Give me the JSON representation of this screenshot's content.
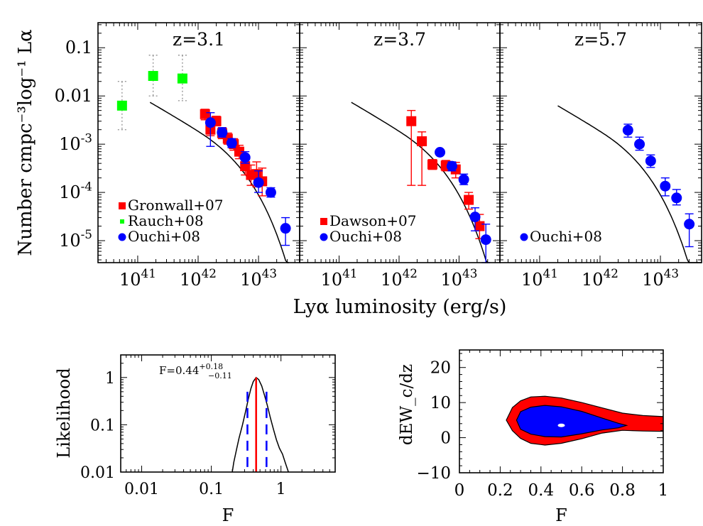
{
  "figure": {
    "ylabel_top": "Number cmpc⁻³log⁻¹ Lα",
    "xlabel_top": "Lyα luminosity (erg/s)"
  },
  "chart_data": [
    {
      "type": "scatter",
      "title": "z=3.1",
      "xscale": "log",
      "yscale": "log",
      "xlim": [
        2.2e+40,
        4.8e+43
      ],
      "ylim": [
        3.5e-06,
        0.33
      ],
      "xticklabels": [
        "10^41",
        "10^42",
        "10^43"
      ],
      "yticklabels": [
        "0.1",
        "0.01",
        "10^-3",
        "10^-4",
        "10^-5"
      ],
      "legend_position": "lower-left",
      "legend": [
        {
          "label": "Gronwall+07",
          "color": "#ff0000",
          "marker": "square"
        },
        {
          "label": "Rauch+08",
          "color": "#00ff00",
          "marker": "square"
        },
        {
          "label": "Ouchi+08",
          "color": "#0000ff",
          "marker": "circle"
        }
      ],
      "series": [
        {
          "name": "Gronwall+07",
          "color": "#ff0000",
          "marker": "square",
          "points": [
            [
              1.3e+42,
              0.0042,
              0.0032,
              0.0053
            ],
            [
              1.6e+42,
              0.002,
              0.0015,
              0.0026
            ],
            [
              2e+42,
              0.003,
              0.0024,
              0.0038
            ],
            [
              2.5e+42,
              0.0017,
              0.0013,
              0.0022
            ],
            [
              3.1e+42,
              0.0013,
              0.001,
              0.0017
            ],
            [
              3.9e+42,
              0.001,
              0.00075,
              0.0013
            ],
            [
              4.8e+42,
              0.0007,
              0.0005,
              0.00095
            ],
            [
              6e+42,
              0.00035,
              0.00023,
              0.00052
            ],
            [
              7.5e+42,
              0.00023,
              0.00014,
              0.00037
            ],
            [
              9.3e+42,
              0.00024,
              0.00013,
              0.00043
            ],
            [
              1.15e+43,
              0.00017,
              8.5e-05,
              0.00032
            ]
          ]
        },
        {
          "name": "Rauch+08",
          "color": "#00ff00",
          "marker": "square",
          "points": [
            [
              5.5e+40,
              0.0063,
              0.002,
              0.02
            ],
            [
              1.8e+41,
              0.026,
              0.01,
              0.07
            ],
            [
              5.5e+41,
              0.023,
              0.008,
              0.07
            ]
          ]
        },
        {
          "name": "Ouchi+08",
          "color": "#0000ff",
          "marker": "circle",
          "points": [
            [
              1.6e+42,
              0.0028,
              0.0009,
              0.0045
            ],
            [
              2.5e+42,
              0.00175,
              0.0014,
              0.0022
            ],
            [
              3.6e+42,
              0.00105,
              0.00085,
              0.0013
            ],
            [
              6e+42,
              0.00053,
              0.0004,
              0.0007
            ],
            [
              1e+43,
              0.00016,
              0.0001,
              0.00028
            ],
            [
              1.6e+43,
              0.0001,
              8e-05,
              0.000125
            ],
            [
              2.8e+43,
              1.8e-05,
              8e-06,
              3e-05
            ]
          ]
        }
      ],
      "model_curve": {
        "x_from": 1.6e+41,
        "x_to": 3.2e+43
      }
    },
    {
      "type": "scatter",
      "title": "z=3.7",
      "xscale": "log",
      "yscale": "log",
      "xlim": [
        2.2e+40,
        4.8e+43
      ],
      "ylim": [
        3.5e-06,
        0.33
      ],
      "xticklabels": [
        "10^41",
        "10^42",
        "10^43"
      ],
      "legend_position": "lower-left",
      "legend": [
        {
          "label": "Dawson+07",
          "color": "#ff0000",
          "marker": "square"
        },
        {
          "label": "Ouchi+08",
          "color": "#0000ff",
          "marker": "circle"
        }
      ],
      "series": [
        {
          "name": "Dawson+07",
          "color": "#ff0000",
          "marker": "square",
          "points": [
            [
              1.6e+42,
              0.003,
              0.00014,
              0.005
            ],
            [
              2.4e+42,
              0.00115,
              0.00014,
              0.0018
            ],
            [
              3.6e+42,
              0.00038,
              0.0003,
              0.00048
            ],
            [
              6e+42,
              0.00036,
              0.00028,
              0.00046
            ],
            [
              8.8e+42,
              0.0003,
              0.0002,
              0.00042
            ],
            [
              1.45e+43,
              7e-05,
              4.5e-05,
              0.0001
            ],
            [
              2.2e+43,
              2e-05,
              1.1e-05,
              3.5e-05
            ]
          ]
        },
        {
          "name": "Ouchi+08",
          "color": "#0000ff",
          "marker": "circle",
          "points": [
            [
              4.8e+42,
              0.00068,
              0.0006,
              0.00077
            ],
            [
              7.6e+42,
              0.00035,
              0.00028,
              0.00043
            ],
            [
              1.2e+43,
              0.000185,
              0.000145,
              0.00024
            ],
            [
              1.85e+43,
              3.1e-05,
              1.6e-05,
              4.8e-05
            ],
            [
              2.8e+43,
              1.05e-05,
              3.5e-06,
              2.2e-05
            ]
          ]
        }
      ],
      "model_curve": {
        "x_from": 1.6e+41,
        "x_to": 3e+43
      }
    },
    {
      "type": "scatter",
      "title": "z=5.7",
      "xscale": "log",
      "yscale": "log",
      "xlim": [
        2.2e+40,
        4.8e+43
      ],
      "ylim": [
        3.5e-06,
        0.33
      ],
      "xticklabels": [
        "10^41",
        "10^42",
        "10^43"
      ],
      "legend_position": "lower-left",
      "legend": [
        {
          "label": "Ouchi+08",
          "color": "#0000ff",
          "marker": "circle"
        }
      ],
      "series": [
        {
          "name": "Ouchi+08",
          "color": "#0000ff",
          "marker": "circle",
          "points": [
            [
              2.9e+42,
              0.00195,
              0.0014,
              0.0026
            ],
            [
              4.5e+42,
              0.001,
              0.00075,
              0.0014
            ],
            [
              6.9e+42,
              0.00045,
              0.00033,
              0.0006
            ],
            [
              1.2e+43,
              0.000135,
              8.5e-05,
              0.0002
            ],
            [
              1.85e+43,
              7.7e-05,
              5.5e-05,
              0.000115
            ],
            [
              3e+43,
              2.2e-05,
              7.5e-06,
              3.6e-05
            ]
          ]
        }
      ],
      "model_curve": {
        "x_from": 2e+41,
        "x_to": 4.8e+43
      }
    },
    {
      "type": "line",
      "xscale": "log",
      "yscale": "log",
      "xlim": [
        0.005,
        6.0
      ],
      "ylim": [
        0.01,
        3.0
      ],
      "xlabel": "F",
      "ylabel": "Likelihood",
      "xticklabels": [
        "0.01",
        "0.1",
        "1"
      ],
      "yticklabels": [
        "1",
        "0.1",
        "0.01"
      ],
      "annotation": {
        "base": "F=0.44",
        "sup": "+0.18",
        "sub": "−0.11"
      },
      "curve": {
        "x": [
          0.2,
          0.21,
          0.23,
          0.25,
          0.28,
          0.31,
          0.34,
          0.37,
          0.4,
          0.44,
          0.48,
          0.53,
          0.58,
          0.64,
          0.7,
          0.78,
          0.86,
          0.95,
          1.05,
          1.15,
          1.28
        ],
        "y": [
          0.01,
          0.016,
          0.03,
          0.052,
          0.1,
          0.19,
          0.35,
          0.58,
          0.82,
          1.0,
          0.9,
          0.66,
          0.42,
          0.25,
          0.145,
          0.08,
          0.048,
          0.032,
          0.024,
          0.016,
          0.01
        ]
      },
      "best_fit": 0.44,
      "lower": 0.33,
      "upper": 0.62,
      "best_fit_color": "#ff0000",
      "interval_color": "#0000ff"
    },
    {
      "type": "heatmap",
      "xlim": [
        0,
        1
      ],
      "ylim": [
        -10,
        25
      ],
      "xlabel": "F",
      "ylabel": "dEW_c/dz",
      "xticklabels": [
        "0",
        "0.2",
        "0.4",
        "0.6",
        "0.8",
        "1"
      ],
      "yticklabels": [
        "20",
        "10",
        "0",
        "−10"
      ],
      "contours": [
        {
          "level": "outer",
          "color": "#ff0000",
          "boundary": [
            [
              0.23,
              5
            ],
            [
              0.26,
              8.6
            ],
            [
              0.3,
              10.5
            ],
            [
              0.35,
              11.6
            ],
            [
              0.42,
              11.8
            ],
            [
              0.5,
              11.3
            ],
            [
              0.6,
              10
            ],
            [
              0.7,
              8.5
            ],
            [
              0.8,
              7
            ],
            [
              0.9,
              6.3
            ],
            [
              1.0,
              6
            ],
            [
              1.0,
              1.8
            ],
            [
              0.9,
              1.9
            ],
            [
              0.8,
              2.1
            ],
            [
              0.7,
              1.3
            ],
            [
              0.6,
              -0.3
            ],
            [
              0.5,
              -1.6
            ],
            [
              0.42,
              -2.1
            ],
            [
              0.35,
              -1.6
            ],
            [
              0.3,
              -0.2
            ],
            [
              0.26,
              2
            ]
          ]
        },
        {
          "level": "inner",
          "color": "#0000ff",
          "boundary": [
            [
              0.28,
              5
            ],
            [
              0.3,
              7.4
            ],
            [
              0.35,
              8.7
            ],
            [
              0.42,
              9.2
            ],
            [
              0.5,
              8.8
            ],
            [
              0.6,
              7.5
            ],
            [
              0.7,
              5.6
            ],
            [
              0.78,
              4.1
            ],
            [
              0.82,
              3.5
            ],
            [
              0.78,
              2.8
            ],
            [
              0.7,
              2.2
            ],
            [
              0.6,
              1.1
            ],
            [
              0.5,
              0.2
            ],
            [
              0.42,
              0.3
            ],
            [
              0.35,
              1
            ],
            [
              0.3,
              2.4
            ]
          ]
        }
      ],
      "peak": [
        0.5,
        3.5
      ]
    }
  ]
}
